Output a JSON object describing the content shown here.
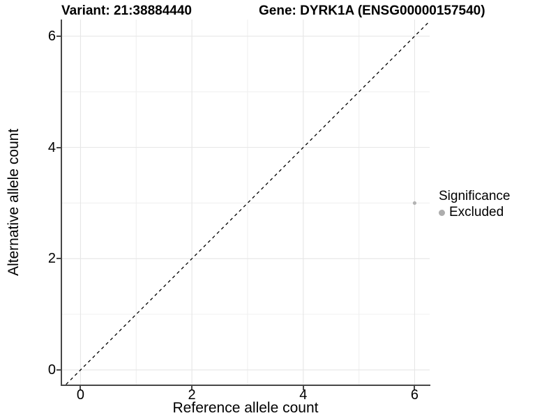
{
  "page": {
    "background": "#ffffff"
  },
  "chart_data": {
    "type": "scatter",
    "titles": {
      "variant": "Variant: 21:38884440",
      "gene": "Gene: DYRK1A (ENSG00000157540)"
    },
    "xlabel": "Reference allele count",
    "ylabel": "Alternative allele count",
    "x_ticks": [
      0,
      2,
      4,
      6
    ],
    "y_ticks": [
      0,
      2,
      4,
      6
    ],
    "x_minor": [
      1,
      3,
      5
    ],
    "y_minor": [
      1,
      3,
      5
    ],
    "xlim": [
      -0.344,
      6.27
    ],
    "ylim": [
      -0.276,
      6.3
    ],
    "grid": true,
    "reference_line": {
      "equation": "y = x",
      "style": "dashed",
      "color": "#000000"
    },
    "series": [
      {
        "name": "Excluded",
        "color": "#b3b3b3",
        "points": [
          {
            "x": 6,
            "y": 3
          }
        ]
      }
    ],
    "legend": {
      "title": "Significance",
      "position": "right",
      "entries": [
        {
          "label": "Excluded",
          "color": "#adadad"
        }
      ]
    },
    "colors": {
      "grid_major": "#e6e6e6",
      "grid_minor": "#f0f0f0",
      "axis": "#474747",
      "point": "#b3b3b3"
    }
  }
}
